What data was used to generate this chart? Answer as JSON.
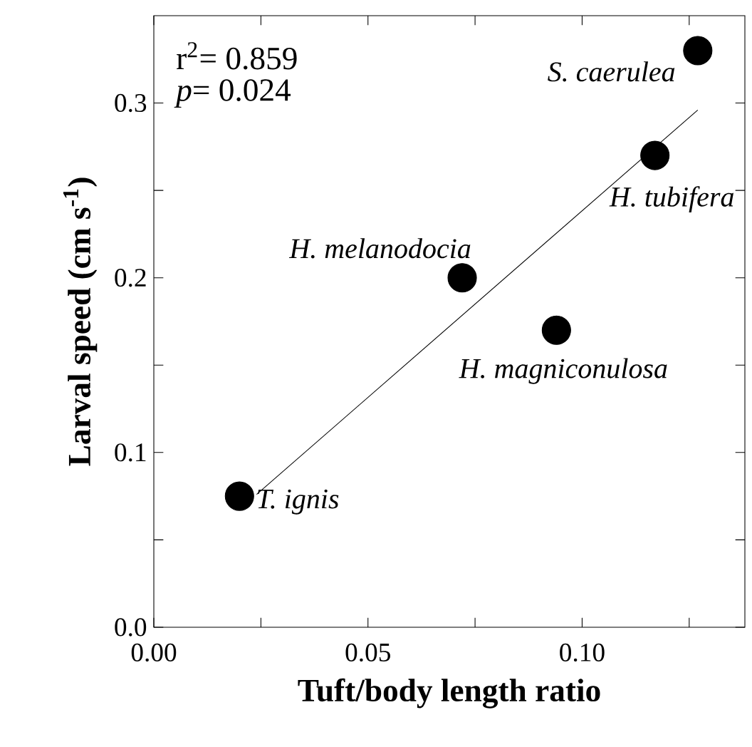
{
  "chart_data": {
    "type": "scatter",
    "xlabel": "Tuft/body length ratio",
    "ylabel": "Larval speed (cm s$^{-1}$)",
    "xlim": [
      0,
      0.138
    ],
    "ylim": [
      0,
      0.35
    ],
    "xticks": [
      {
        "value": 0,
        "label": "0.00"
      },
      {
        "value": 0.025,
        "label": null
      },
      0.05,
      {
        "value": 0.075,
        "label": null
      },
      {
        "value": 0.1,
        "label": "0.10"
      },
      {
        "value": 0.125,
        "label": null
      }
    ],
    "yticks": [
      {
        "value": 0,
        "label": "0.0"
      },
      {
        "value": 0.05,
        "label": null
      },
      0.1,
      {
        "value": 0.15,
        "label": null
      },
      0.2,
      {
        "value": 0.25,
        "label": null
      },
      0.3
    ],
    "grid": false,
    "series": [
      {
        "color": "#000000",
        "marker": "circle",
        "x": [
          0.02,
          0.072,
          0.094,
          0.117,
          0.127
        ],
        "values": [
          0.075,
          0.2,
          0.17,
          0.27,
          0.33
        ]
      },
      {
        "type": "line",
        "color": "#000000",
        "marker": "none",
        "x": [
          0.024,
          0.127
        ],
        "values": [
          0.076,
          0.296
        ]
      }
    ],
    "annotations": [
      "r$^{2}$= 0.859",
      "*p*= 0.024",
      {
        "text": "*T. ignis*",
        "x": 0.02,
        "y": 0.075
      },
      {
        "text": "*H. melanodocia*",
        "x": 0.072,
        "y": 0.2
      },
      {
        "text": "*H. magniconulosa*",
        "x": 0.094,
        "y": 0.17
      },
      {
        "text": "*H. tubifera*",
        "x": 0.117,
        "y": 0.27
      },
      {
        "text": "*S. caerulea*",
        "x": 0.127,
        "y": 0.33
      }
    ]
  }
}
